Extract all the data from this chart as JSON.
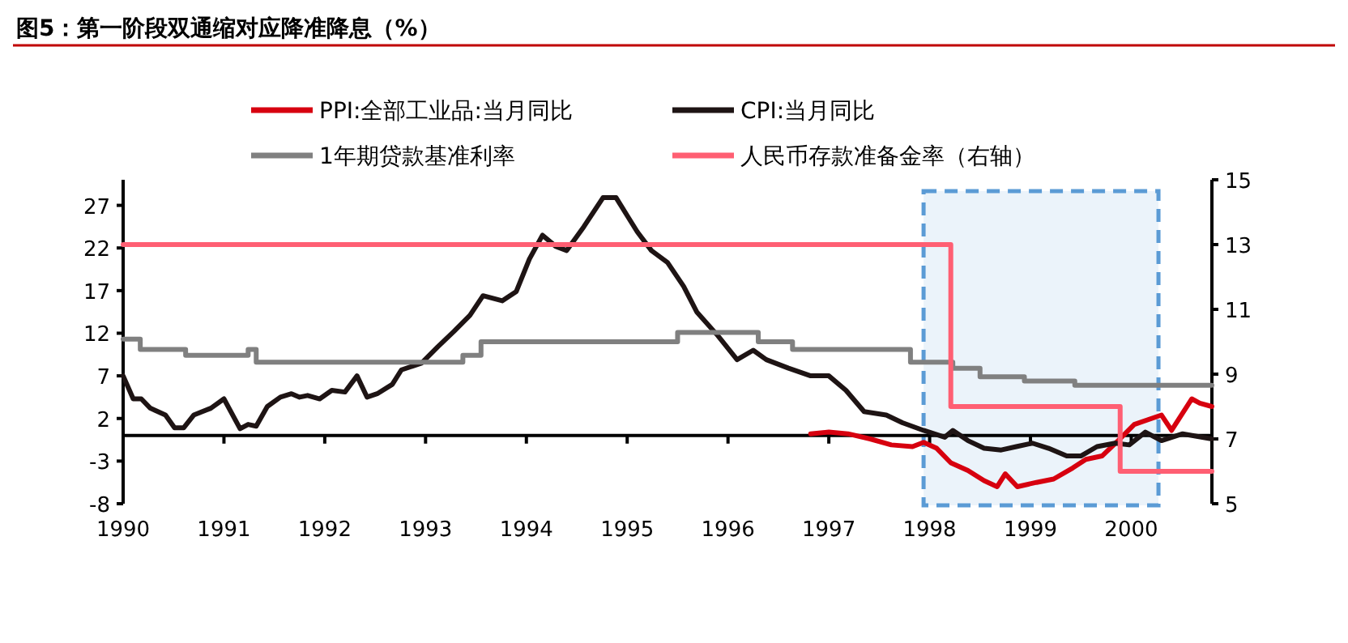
{
  "chart_data": {
    "type": "line",
    "title": "图5：第一阶段双通缩对应降准降息（%）",
    "legend": "top",
    "xlim": [
      1990,
      2000.8
    ],
    "xticks": [
      1990,
      1991,
      1992,
      1993,
      1994,
      1995,
      1996,
      1997,
      1998,
      1999,
      2000
    ],
    "ylim": [
      -8,
      30
    ],
    "yticks": [
      -8,
      -3,
      2,
      7,
      12,
      17,
      22,
      27
    ],
    "y2lim": [
      5,
      15
    ],
    "y2ticks": [
      5,
      7,
      9,
      11,
      13,
      15
    ],
    "bands": [
      {
        "axis": "x",
        "from": 1997.94,
        "to": 2000.27,
        "color": "#5b9bd5"
      }
    ],
    "series": [
      {
        "name": "PPI:全部工业品:当月同比",
        "color": "#d7000f",
        "x": [
          1996.82,
          1997.0,
          1997.19,
          1997.41,
          1997.62,
          1997.83,
          1997.94,
          1998.07,
          1998.21,
          1998.38,
          1998.54,
          1998.67,
          1998.75,
          1998.87,
          1999.06,
          1999.23,
          1999.42,
          1999.55,
          1999.71,
          1999.87,
          2000.03,
          2000.3,
          2000.4,
          2000.6,
          2000.68,
          2000.8
        ],
        "values": [
          0.2,
          0.4,
          0.2,
          -0.4,
          -1.1,
          -1.3,
          -0.8,
          -1.5,
          -3.2,
          -4.1,
          -5.3,
          -6.0,
          -4.5,
          -6.0,
          -5.5,
          -5.1,
          -3.8,
          -2.8,
          -2.4,
          -0.6,
          1.3,
          2.4,
          0.6,
          4.3,
          3.8,
          3.4
        ]
      },
      {
        "name": "CPI:当月同比",
        "color": "#1e1414",
        "x": [
          1990.0,
          1990.1,
          1990.18,
          1990.27,
          1990.42,
          1990.51,
          1990.6,
          1990.7,
          1990.87,
          1991.0,
          1991.16,
          1991.24,
          1991.32,
          1991.43,
          1991.56,
          1991.67,
          1991.75,
          1991.83,
          1991.95,
          1992.07,
          1992.2,
          1992.32,
          1992.42,
          1992.52,
          1992.67,
          1992.76,
          1992.96,
          1993.12,
          1993.28,
          1993.44,
          1993.57,
          1993.76,
          1993.9,
          1994.03,
          1994.16,
          1994.29,
          1994.4,
          1994.57,
          1994.76,
          1994.89,
          1995.0,
          1995.1,
          1995.24,
          1995.4,
          1995.56,
          1995.69,
          1995.9,
          1996.09,
          1996.25,
          1996.38,
          1996.6,
          1996.82,
          1997.0,
          1997.17,
          1997.35,
          1997.57,
          1997.73,
          1997.94,
          1998.15,
          1998.23,
          1998.38,
          1998.54,
          1998.71,
          1998.86,
          1999.02,
          1999.18,
          1999.36,
          1999.5,
          1999.66,
          1999.84,
          1999.98,
          2000.14,
          2000.3,
          2000.51,
          2000.8
        ],
        "values": [
          7.0,
          4.3,
          4.3,
          3.2,
          2.4,
          0.9,
          0.9,
          2.4,
          3.2,
          4.3,
          0.8,
          1.3,
          1.1,
          3.4,
          4.5,
          4.9,
          4.5,
          4.7,
          4.3,
          5.3,
          5.1,
          7.0,
          4.5,
          4.9,
          6.0,
          7.7,
          8.5,
          10.4,
          12.2,
          14.1,
          16.4,
          15.8,
          16.9,
          20.7,
          23.5,
          22.2,
          21.7,
          24.5,
          27.9,
          27.9,
          25.8,
          23.9,
          21.7,
          20.3,
          17.5,
          14.5,
          11.7,
          8.9,
          10.0,
          8.9,
          7.9,
          7.0,
          7.0,
          5.3,
          2.8,
          2.4,
          1.5,
          0.6,
          -0.2,
          0.6,
          -0.6,
          -1.5,
          -1.7,
          -1.3,
          -0.9,
          -1.5,
          -2.4,
          -2.4,
          -1.3,
          -0.9,
          -1.1,
          0.4,
          -0.6,
          0.2,
          -0.4
        ]
      },
      {
        "name": "1年期贷款基准利率",
        "type": "step",
        "color": "#808080",
        "x": [
          1990.0,
          1990.17,
          1990.62,
          1991.24,
          1991.32,
          1993.37,
          1993.55,
          1995.5,
          1996.3,
          1996.64,
          1997.81,
          1998.23,
          1998.5,
          1998.94,
          1999.44,
          2000.8
        ],
        "values": [
          11.3,
          10.1,
          9.4,
          10.1,
          8.6,
          9.4,
          11.0,
          12.1,
          11.0,
          10.1,
          8.6,
          7.9,
          6.9,
          6.4,
          5.9,
          5.9
        ]
      },
      {
        "name": "人民币存款准备金率（右轴）",
        "type": "step",
        "axis": "y2",
        "color": "#ff5f73",
        "x": [
          1990.0,
          1998.21,
          1999.89,
          2000.8
        ],
        "values": [
          13,
          8,
          6,
          6
        ]
      }
    ]
  }
}
